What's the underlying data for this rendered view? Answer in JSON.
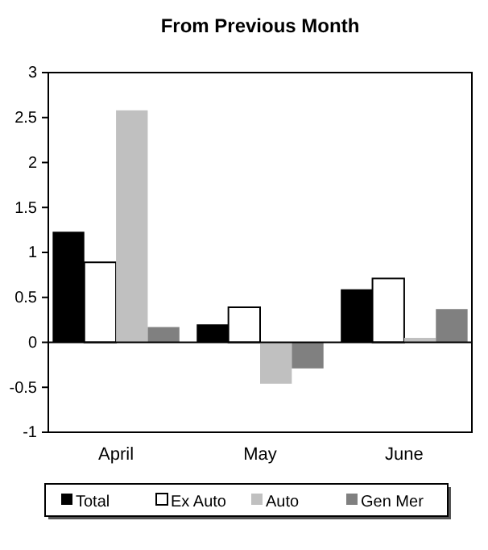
{
  "chart_data": {
    "type": "bar",
    "title": "From Previous Month",
    "categories": [
      "April",
      "May",
      "June"
    ],
    "series": [
      {
        "name": "Total",
        "color": "#000000",
        "values": [
          1.23,
          0.2,
          0.59
        ]
      },
      {
        "name": "Ex Auto",
        "color": "#ffffff",
        "values": [
          0.89,
          0.39,
          0.71
        ]
      },
      {
        "name": "Auto",
        "color": "#c0c0c0",
        "values": [
          2.58,
          -0.46,
          0.05
        ]
      },
      {
        "name": "Gen Mer",
        "color": "#808080",
        "values": [
          0.17,
          -0.29,
          0.37
        ]
      }
    ],
    "ylim": [
      -1,
      3
    ],
    "yticks": [
      -1,
      -0.5,
      0,
      0.5,
      1,
      1.5,
      2,
      2.5,
      3
    ],
    "legend": "bottom"
  }
}
